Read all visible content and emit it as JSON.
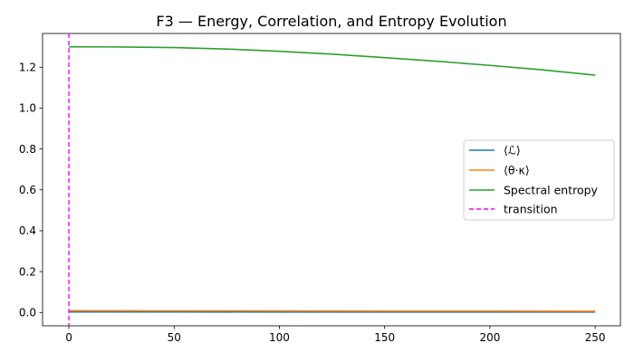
{
  "chart_data": {
    "type": "line",
    "title": "F3 — Energy, Correlation, and Entropy Evolution",
    "xlabel": "",
    "ylabel": "",
    "xlim": [
      -12.5,
      262
    ],
    "ylim": [
      -0.065,
      1.365
    ],
    "x_ticks": [
      0,
      50,
      100,
      150,
      200,
      250
    ],
    "y_ticks": [
      0.0,
      0.2,
      0.4,
      0.6,
      0.8,
      1.0,
      1.2
    ],
    "y_tick_labels": [
      "0.0",
      "0.2",
      "0.4",
      "0.6",
      "0.8",
      "1.0",
      "1.2"
    ],
    "grid": false,
    "legend_position": "center-right",
    "series": [
      {
        "name": "⟨ℒ⟩",
        "color": "#1f77b4",
        "style": "solid",
        "x": [
          0,
          50,
          100,
          150,
          200,
          250
        ],
        "y": [
          0.003,
          0.003,
          0.002,
          0.002,
          0.002,
          0.002
        ]
      },
      {
        "name": "⟨θ·κ⟩",
        "color": "#ff7f0e",
        "style": "solid",
        "x": [
          0,
          50,
          100,
          150,
          200,
          250
        ],
        "y": [
          0.009,
          0.008,
          0.008,
          0.007,
          0.007,
          0.006
        ]
      },
      {
        "name": "Spectral entropy",
        "color": "#2ca02c",
        "style": "solid",
        "x": [
          0,
          25,
          50,
          75,
          100,
          125,
          150,
          175,
          200,
          225,
          250
        ],
        "y": [
          1.3,
          1.299,
          1.296,
          1.289,
          1.278,
          1.264,
          1.247,
          1.229,
          1.209,
          1.187,
          1.161
        ]
      }
    ],
    "vlines": [
      {
        "name": "transition",
        "x": 0,
        "color": "#ff00ff",
        "style": "dashed"
      }
    ]
  }
}
